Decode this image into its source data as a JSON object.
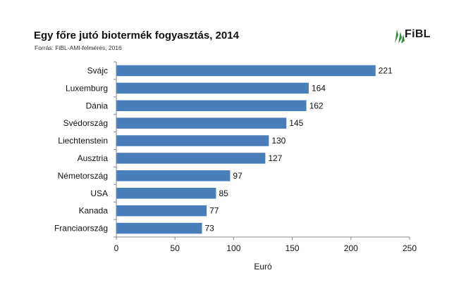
{
  "header": {
    "title": "Egy főre jutó biotermék fogyasztás, 2014",
    "source": "Forrás: FiBL-AMI-felmérés, 2016"
  },
  "logo": {
    "text": "FiBL",
    "icon": "fibl-leaf-icon",
    "color": "#2e8b3a"
  },
  "chart_data": {
    "type": "bar",
    "orientation": "horizontal",
    "title": "Egy főre jutó biotermék fogyasztás, 2014",
    "subtitle": "Forrás: FiBL-AMI-felmérés, 2016",
    "categories": [
      "Svájc",
      "Luxemburg",
      "Dánia",
      "Svédország",
      "Liechtenstein",
      "Ausztria",
      "Németország",
      "USA",
      "Kanada",
      "Franciaország"
    ],
    "values": [
      221,
      164,
      162,
      145,
      130,
      127,
      97,
      85,
      77,
      73
    ],
    "xlabel": "Euró",
    "ylabel": "",
    "xlim": [
      0,
      250
    ],
    "xticks": [
      0,
      50,
      100,
      150,
      200,
      250
    ],
    "data_labels": true,
    "grid": false,
    "bar_color": "#4a7ebb"
  }
}
